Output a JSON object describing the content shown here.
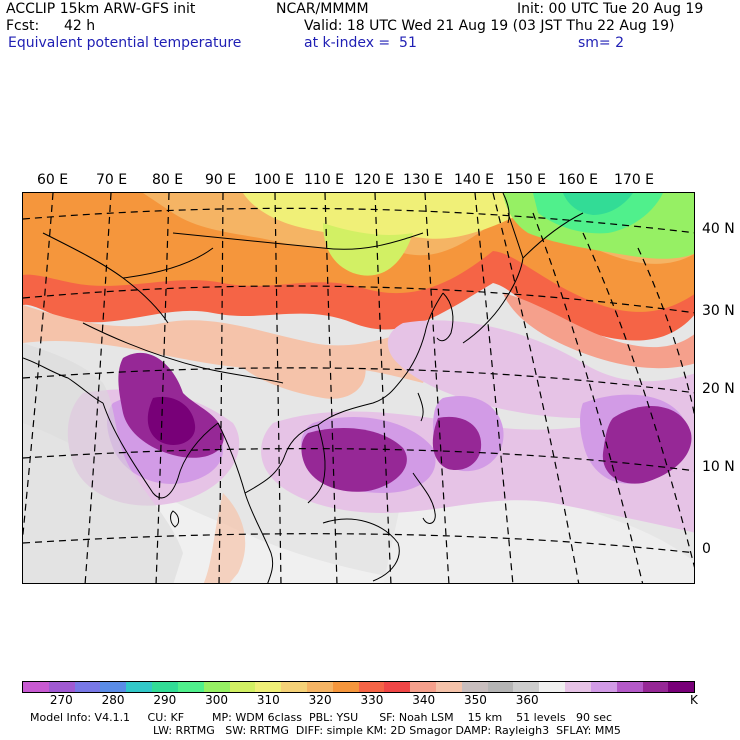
{
  "header": {
    "model": "ACCLIP 15km ARW-GFS init",
    "org": "NCAR/MMMM",
    "init": "Init: 00 UTC Tue 20 Aug 19",
    "fcst_label": "Fcst:",
    "fcst_value": "42 h",
    "valid": "Valid: 18 UTC Wed 21 Aug 19 (03 JST Thu 22 Aug 19)",
    "field": "Equivalent potential temperature",
    "level": "at k-index =  51",
    "smooth": "sm= 2"
  },
  "map": {
    "lon_labels": [
      "60 E",
      "70 E",
      "80 E",
      "90 E",
      "100 E",
      "110 E",
      "120 E",
      "130 E",
      "140 E",
      "150 E",
      "160 E",
      "170 E"
    ],
    "lat_labels": [
      "40 N",
      "30 N",
      "20 N",
      "10 N",
      "0"
    ]
  },
  "colorbar": {
    "colors": [
      "#c85ad2",
      "#a05ad2",
      "#7878e6",
      "#5a8ce6",
      "#32c8c8",
      "#32dc96",
      "#50f08c",
      "#96f064",
      "#d2f064",
      "#f0f078",
      "#f5d278",
      "#f5b464",
      "#f5963c",
      "#f56446",
      "#f04646",
      "#f5a08c",
      "#f5c3aa",
      "#c8bebe",
      "#b4b4b4",
      "#cdcdcd",
      "#f0f0f0",
      "#e6c3e6",
      "#d29be6",
      "#b45ac8",
      "#962896",
      "#780078"
    ],
    "tick_labels": [
      "270",
      "280",
      "290",
      "300",
      "310",
      "320",
      "330",
      "340",
      "350",
      "360"
    ],
    "unit": "K"
  },
  "footer": {
    "line1": "Model Info: V4.1.1     CU: KF        MP: WDM 6class  PBL: YSU      SF: Noah LSM    15 km    51 levels   90 sec",
    "line2": "LW: RRTMG   SW: RRTMG  DIFF: simple KM: 2D Smagor DAMP: Rayleigh3  SFLAY: MM5"
  }
}
